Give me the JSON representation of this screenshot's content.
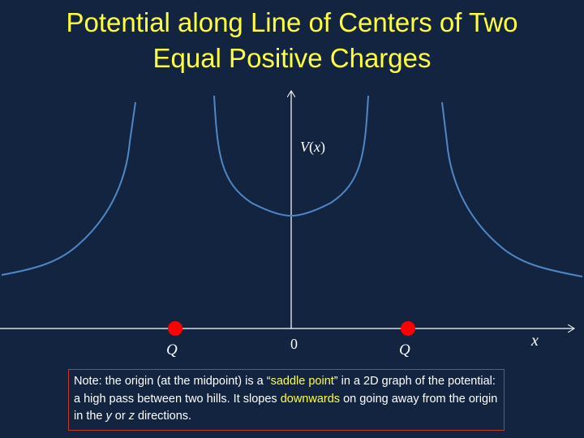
{
  "title": {
    "line1": "Potential along Line of Centers of Two",
    "line2": "Equal Positive Charges"
  },
  "axes": {
    "y_label_v": "V",
    "y_label_open": "(",
    "y_label_x": "x",
    "y_label_close": ")",
    "x_label": "x",
    "origin_label": "0"
  },
  "charges": {
    "left_label": "Q",
    "right_label": "Q",
    "color": "#ff0000"
  },
  "note": {
    "p1": "Note: the origin (at the midpoint) is a “",
    "highlight1": "saddle point",
    "p2": "” in  a 2D graph of the potential: a high pass between two hills.  It slopes ",
    "highlight2": "downwards",
    "p3": " on going away from the origin in the ",
    "y": "y",
    "or": " or ",
    "z": "z",
    "p4": " directions."
  },
  "colors": {
    "background": "#12243f",
    "title": "#ffff3c",
    "curve": "#4f86c6",
    "axis": "#ffffff",
    "note_border": "#c0392b"
  }
}
